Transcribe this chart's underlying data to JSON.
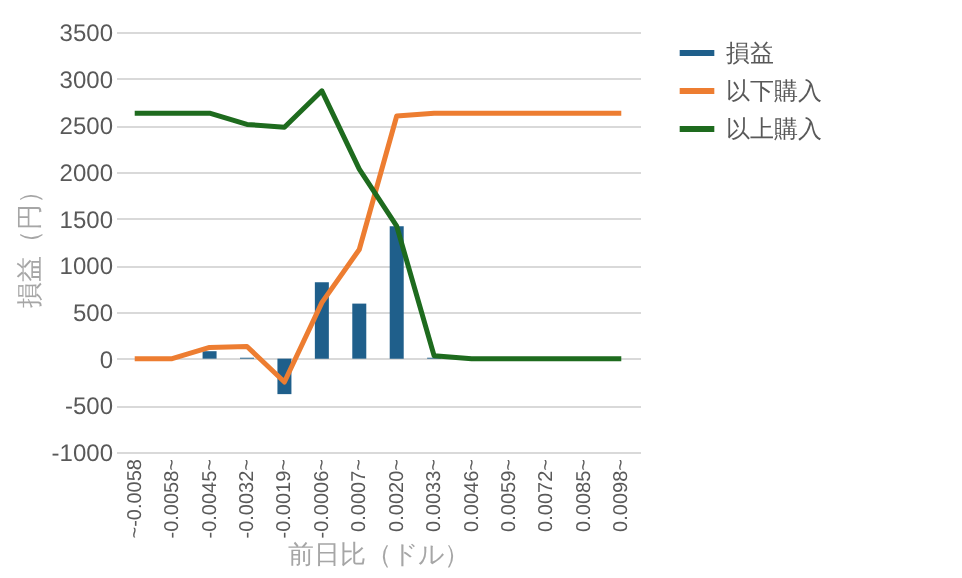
{
  "chart_data": {
    "type": "bar",
    "xlabel": "前日比（ドル）",
    "ylabel": "損益（円）",
    "categories": [
      "~-0.0058",
      "-0.0058~",
      "-0.0045~",
      "-0.0032~",
      "-0.0019~",
      "-0.0006~",
      "0.0007~",
      "0.0020~",
      "0.0033~",
      "0.0046~",
      "0.0059~",
      "0.0072~",
      "0.0085~",
      "0.0098~"
    ],
    "series": [
      {
        "name": "損益",
        "type": "bar",
        "color": "#1f5f8b",
        "values": [
          0,
          0,
          80,
          10,
          -380,
          820,
          590,
          1420,
          10,
          0,
          0,
          0,
          0,
          0
        ]
      },
      {
        "name": "以下購入",
        "type": "line",
        "color": "#ed7d31",
        "values": [
          0,
          0,
          120,
          130,
          -250,
          600,
          1170,
          2600,
          2630,
          2630,
          2630,
          2630,
          2630,
          2630
        ]
      },
      {
        "name": "以上購入",
        "type": "line",
        "color": "#1e6b1e",
        "values": [
          2630,
          2630,
          2630,
          2510,
          2480,
          2870,
          2030,
          1420,
          30,
          0,
          0,
          0,
          0,
          0
        ]
      }
    ],
    "ylim": [
      -1000,
      3500
    ],
    "yticks": [
      -1000,
      -500,
      0,
      500,
      1000,
      1500,
      2000,
      2500,
      3000,
      3500
    ],
    "grid": "y",
    "legend": "right"
  }
}
